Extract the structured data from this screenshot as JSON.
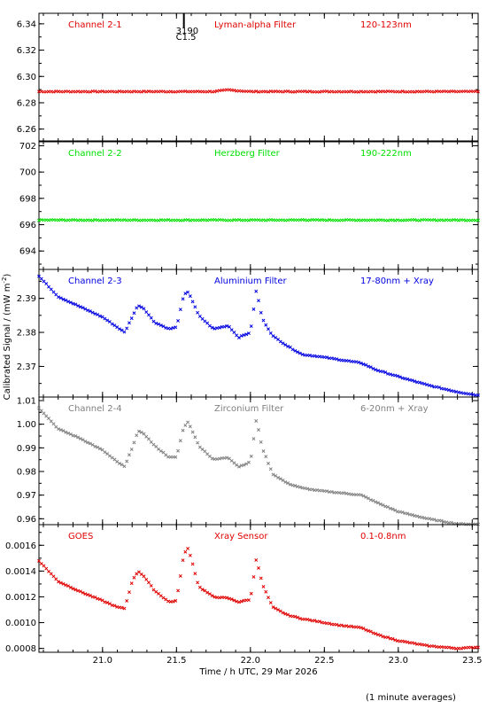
{
  "chart_data": {
    "type": "scatter",
    "xlabel": "Time / h UTC, 29 Mar 2026",
    "ylabel": "Calibrated Signal / (mW m",
    "ylabel_sup": "-2",
    "ylabel_close": ")",
    "footnote": "(1 minute averages)",
    "xlim": [
      20.57,
      23.54
    ],
    "xticks": [
      "21.0",
      "21.5",
      "22.0",
      "22.5",
      "23.0",
      "23.5"
    ],
    "panels": [
      {
        "labels": [
          "Channel 2-1",
          "Lyman-alpha Filter",
          "120-123nm"
        ],
        "color": "#e00000",
        "ylim": [
          6.251,
          6.348
        ],
        "yticks": [
          "6.34",
          "6.32",
          "6.30",
          "6.28",
          "6.26"
        ],
        "ytick_values": [
          6.34,
          6.32,
          6.3,
          6.28,
          6.26
        ],
        "event_marker": {
          "x": 21.55,
          "labels": [
            "3190",
            "C1.5"
          ]
        },
        "series": {
          "x": [
            20.57,
            21.0,
            21.5,
            21.75,
            21.85,
            21.9,
            22.0,
            22.5,
            23.0,
            23.54
          ],
          "y": [
            6.2885,
            6.2885,
            6.2885,
            6.2885,
            6.2898,
            6.2893,
            6.2885,
            6.2885,
            6.2885,
            6.2885
          ]
        }
      },
      {
        "labels": [
          "Channel 2-2",
          "Herzberg Filter",
          "190-222nm"
        ],
        "color": "#00e000",
        "ylim": [
          692.6,
          702.3
        ],
        "yticks": [
          "702",
          "700",
          "698",
          "696",
          "694"
        ],
        "ytick_values": [
          702,
          700,
          698,
          696,
          694
        ],
        "series": {
          "x": [
            20.57,
            21.5,
            22.0,
            22.35,
            22.36,
            22.37,
            23.0,
            23.54
          ],
          "y": [
            696.35,
            696.35,
            696.35,
            696.35,
            696.55,
            696.35,
            696.35,
            696.35
          ]
        }
      },
      {
        "labels": [
          "Channel 2-3",
          "Aluminium Filter",
          "17-80nm + Xray"
        ],
        "color": "#0000e0",
        "ylim": [
          2.361,
          2.3985
        ],
        "yticks": [
          "2.39",
          "2.38",
          "2.37"
        ],
        "ytick_values": [
          2.39,
          2.38,
          2.37
        ],
        "series": {
          "x": [
            20.57,
            20.7,
            20.85,
            21.0,
            21.1,
            21.15,
            21.2,
            21.24,
            21.28,
            21.35,
            21.45,
            21.5,
            21.55,
            21.58,
            21.65,
            21.75,
            21.85,
            21.92,
            22.0,
            22.04,
            22.08,
            22.15,
            22.25,
            22.35,
            22.45,
            22.6,
            22.75,
            22.85,
            23.0,
            23.2,
            23.4,
            23.54
          ],
          "y": [
            2.3965,
            2.3905,
            2.3875,
            2.3845,
            2.3815,
            2.38,
            2.3845,
            2.388,
            2.387,
            2.383,
            2.381,
            2.3815,
            2.391,
            2.392,
            2.385,
            2.381,
            2.382,
            2.3785,
            2.38,
            2.3925,
            2.384,
            2.379,
            2.376,
            2.3735,
            2.373,
            2.372,
            2.371,
            2.369,
            2.367,
            2.3645,
            2.3625,
            2.3615
          ]
        }
      },
      {
        "labels": [
          "Channel 2-4",
          "Zirconium Filter",
          "6-20nm + Xray"
        ],
        "color": "#808080",
        "ylim": [
          0.9575,
          1.0115
        ],
        "yticks": [
          "1.01",
          "1.00",
          "0.99",
          "0.98",
          "0.97",
          "0.96"
        ],
        "ytick_values": [
          1.01,
          1.0,
          0.99,
          0.98,
          0.97,
          0.96
        ],
        "series": {
          "x": [
            20.57,
            20.7,
            20.85,
            21.0,
            21.1,
            21.15,
            21.2,
            21.24,
            21.28,
            21.35,
            21.45,
            21.5,
            21.55,
            21.58,
            21.65,
            21.75,
            21.85,
            21.92,
            22.0,
            22.04,
            22.08,
            22.15,
            22.25,
            22.35,
            22.45,
            22.6,
            22.75,
            22.85,
            23.0,
            23.2,
            23.4,
            23.54
          ],
          "y": [
            1.007,
            0.998,
            0.994,
            0.989,
            0.984,
            0.982,
            0.99,
            0.997,
            0.996,
            0.991,
            0.986,
            0.986,
            0.999,
            1.001,
            0.991,
            0.985,
            0.986,
            0.982,
            0.984,
            1.002,
            0.99,
            0.979,
            0.975,
            0.973,
            0.972,
            0.971,
            0.97,
            0.967,
            0.963,
            0.96,
            0.9578,
            0.9577
          ]
        }
      },
      {
        "labels": [
          "GOES",
          "Xray Sensor",
          "0.1-0.8nm"
        ],
        "color": "#e00000",
        "ylim": [
          0.00077,
          0.00176
        ],
        "yticks": [
          "0.0016",
          "0.0014",
          "0.0012",
          "0.0010",
          "0.0008"
        ],
        "ytick_values": [
          0.0016,
          0.0014,
          0.0012,
          0.001,
          0.0008
        ],
        "series": {
          "x": [
            20.57,
            20.7,
            20.85,
            21.0,
            21.1,
            21.15,
            21.2,
            21.24,
            21.28,
            21.35,
            21.45,
            21.5,
            21.55,
            21.58,
            21.65,
            21.75,
            21.85,
            21.92,
            22.0,
            22.04,
            22.08,
            22.15,
            22.25,
            22.35,
            22.45,
            22.6,
            22.75,
            22.85,
            23.0,
            23.2,
            23.4,
            23.54
          ],
          "y": [
            0.00148,
            0.00132,
            0.00124,
            0.00117,
            0.00112,
            0.00111,
            0.00132,
            0.0014,
            0.00136,
            0.00125,
            0.00116,
            0.00117,
            0.00153,
            0.00158,
            0.00128,
            0.0012,
            0.00119,
            0.00116,
            0.00118,
            0.0015,
            0.0013,
            0.00112,
            0.00106,
            0.00103,
            0.00101,
            0.00098,
            0.00096,
            0.00091,
            0.00086,
            0.00082,
            0.0008,
            0.00081
          ]
        }
      }
    ]
  }
}
